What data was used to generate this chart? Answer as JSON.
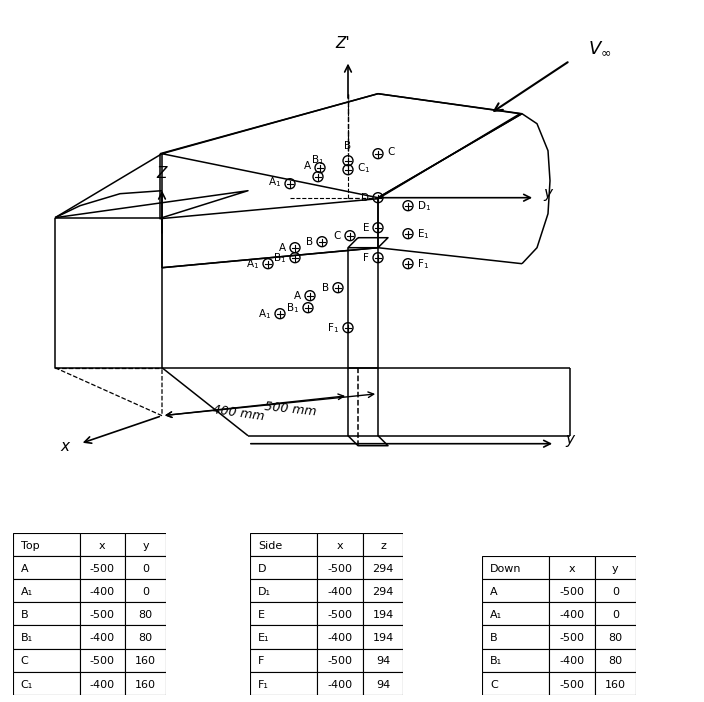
{
  "bg_color": "#ffffff",
  "tables": {
    "top": {
      "header": [
        "Top",
        "x",
        "y"
      ],
      "rows": [
        [
          "A",
          "-500",
          "0"
        ],
        [
          "A₁",
          "-400",
          "0"
        ],
        [
          "B",
          "-500",
          "80"
        ],
        [
          "B₁",
          "-400",
          "80"
        ],
        [
          "C",
          "-500",
          "160"
        ],
        [
          "C₁",
          "-400",
          "160"
        ]
      ]
    },
    "side": {
      "header": [
        "Side",
        "x",
        "z"
      ],
      "rows": [
        [
          "D",
          "-500",
          "294"
        ],
        [
          "D₁",
          "-400",
          "294"
        ],
        [
          "E",
          "-500",
          "194"
        ],
        [
          "E₁",
          "-400",
          "194"
        ],
        [
          "F",
          "-500",
          "94"
        ],
        [
          "F₁",
          "-400",
          "94"
        ]
      ]
    },
    "down": {
      "header": [
        "Down",
        "x",
        "y"
      ],
      "rows": [
        [
          "A",
          "-500",
          "0"
        ],
        [
          "A₁",
          "-400",
          "0"
        ],
        [
          "B",
          "-500",
          "80"
        ],
        [
          "B₁",
          "-400",
          "80"
        ],
        [
          "C",
          "-500",
          "160"
        ]
      ]
    }
  }
}
